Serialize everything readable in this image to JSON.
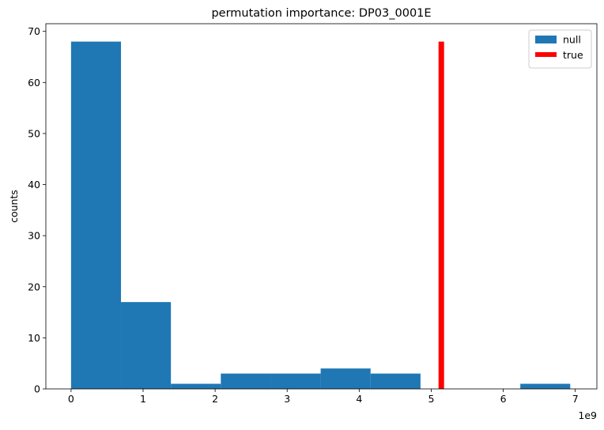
{
  "chart_data": {
    "type": "bar",
    "title": "permutation importance: DP03_0001E",
    "xlabel": "",
    "ylabel": "counts",
    "x_scale_label": "1e9",
    "x_scale": 1000000000,
    "xlim": [
      -0.35,
      7.3
    ],
    "ylim": [
      0,
      71.5
    ],
    "x_ticks": [
      0,
      1,
      2,
      3,
      4,
      5,
      6,
      7
    ],
    "y_ticks": [
      0,
      10,
      20,
      30,
      40,
      50,
      60,
      70
    ],
    "series": [
      {
        "name": "null",
        "kind": "histogram",
        "color": "#1f77b4",
        "bin_edges": [
          0,
          0.693,
          1.386,
          2.079,
          2.772,
          3.465,
          4.158,
          4.851,
          5.544,
          6.237,
          6.93
        ],
        "counts": [
          68,
          17,
          1,
          3,
          3,
          4,
          3,
          0,
          0,
          1
        ]
      },
      {
        "name": "true",
        "kind": "vertical-line",
        "color": "#ff0000",
        "x": 5.14,
        "y_range": [
          0,
          68
        ]
      }
    ],
    "legend": {
      "position": "top-right",
      "entries": [
        "null",
        "true"
      ]
    },
    "grid": false
  }
}
